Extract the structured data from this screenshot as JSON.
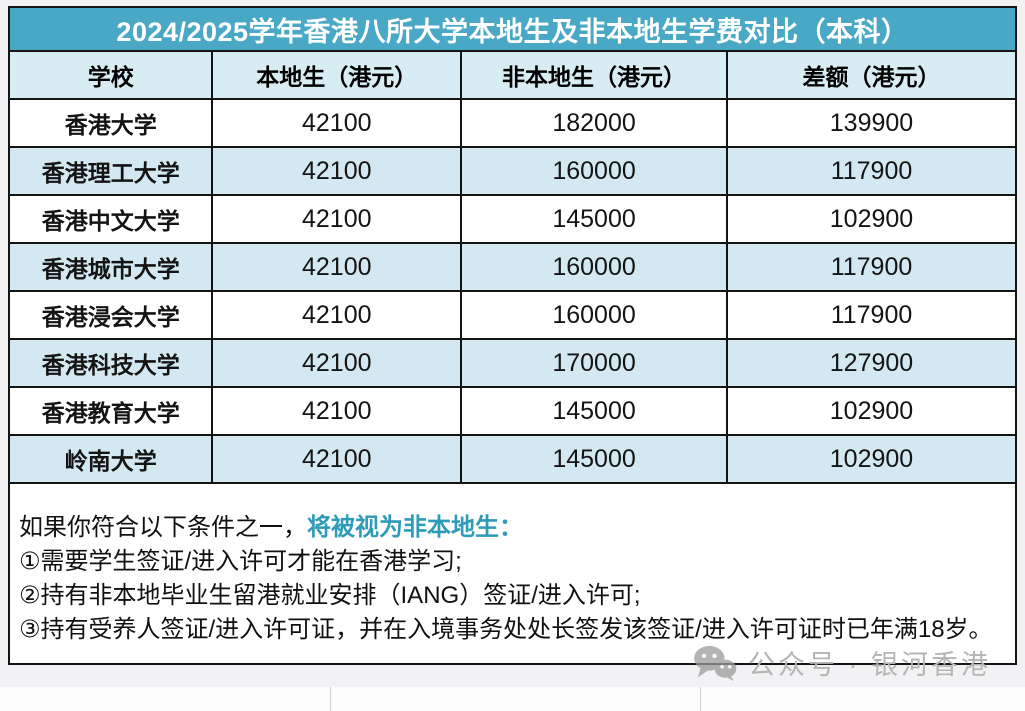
{
  "chart_data": {
    "type": "table",
    "title": "2024/2025学年香港八所大学本地生及非本地生学费对比（本科）",
    "columns": [
      "学校",
      "本地生（港元）",
      "非本地生（港元）",
      "差额（港元）"
    ],
    "rows": [
      [
        "香港大学",
        42100,
        182000,
        139900
      ],
      [
        "香港理工大学",
        42100,
        160000,
        117900
      ],
      [
        "香港中文大学",
        42100,
        145000,
        102900
      ],
      [
        "香港城市大学",
        42100,
        160000,
        117900
      ],
      [
        "香港浸会大学",
        42100,
        160000,
        117900
      ],
      [
        "香港科技大学",
        42100,
        170000,
        127900
      ],
      [
        "香港教育大学",
        42100,
        145000,
        102900
      ],
      [
        "岭南大学",
        42100,
        145000,
        102900
      ]
    ],
    "layout_hints": {
      "striped_rows": true,
      "alternate_row_color_on": "even rows (2nd, 4th, 6th, 8th)"
    }
  },
  "notes": {
    "intro_plain": "如果你符合以下条件之一，",
    "intro_highlight": "将被视为非本地生：",
    "items": [
      "①需要学生签证/进入许可才能在香港学习;",
      "②持有非本地毕业生留港就业安排（IANG）签证/进入许可;",
      "③持有受养人签证/进入许可证，并在入境事务处处长签发该签证/进入许可证时已年满18岁。"
    ]
  },
  "footer": {
    "icon": "wechat-icon",
    "label": "公众号 · 银河香港"
  },
  "colors": {
    "title_bar": "#49a8c5",
    "header_bg": "#d8ecf3",
    "row_alt_bg": "#d3e8f0",
    "border": "#141414",
    "highlight_teal": "#2e9cb8",
    "footer_gray": "#b5b5b5",
    "page_bg": "#f2f2f5"
  }
}
